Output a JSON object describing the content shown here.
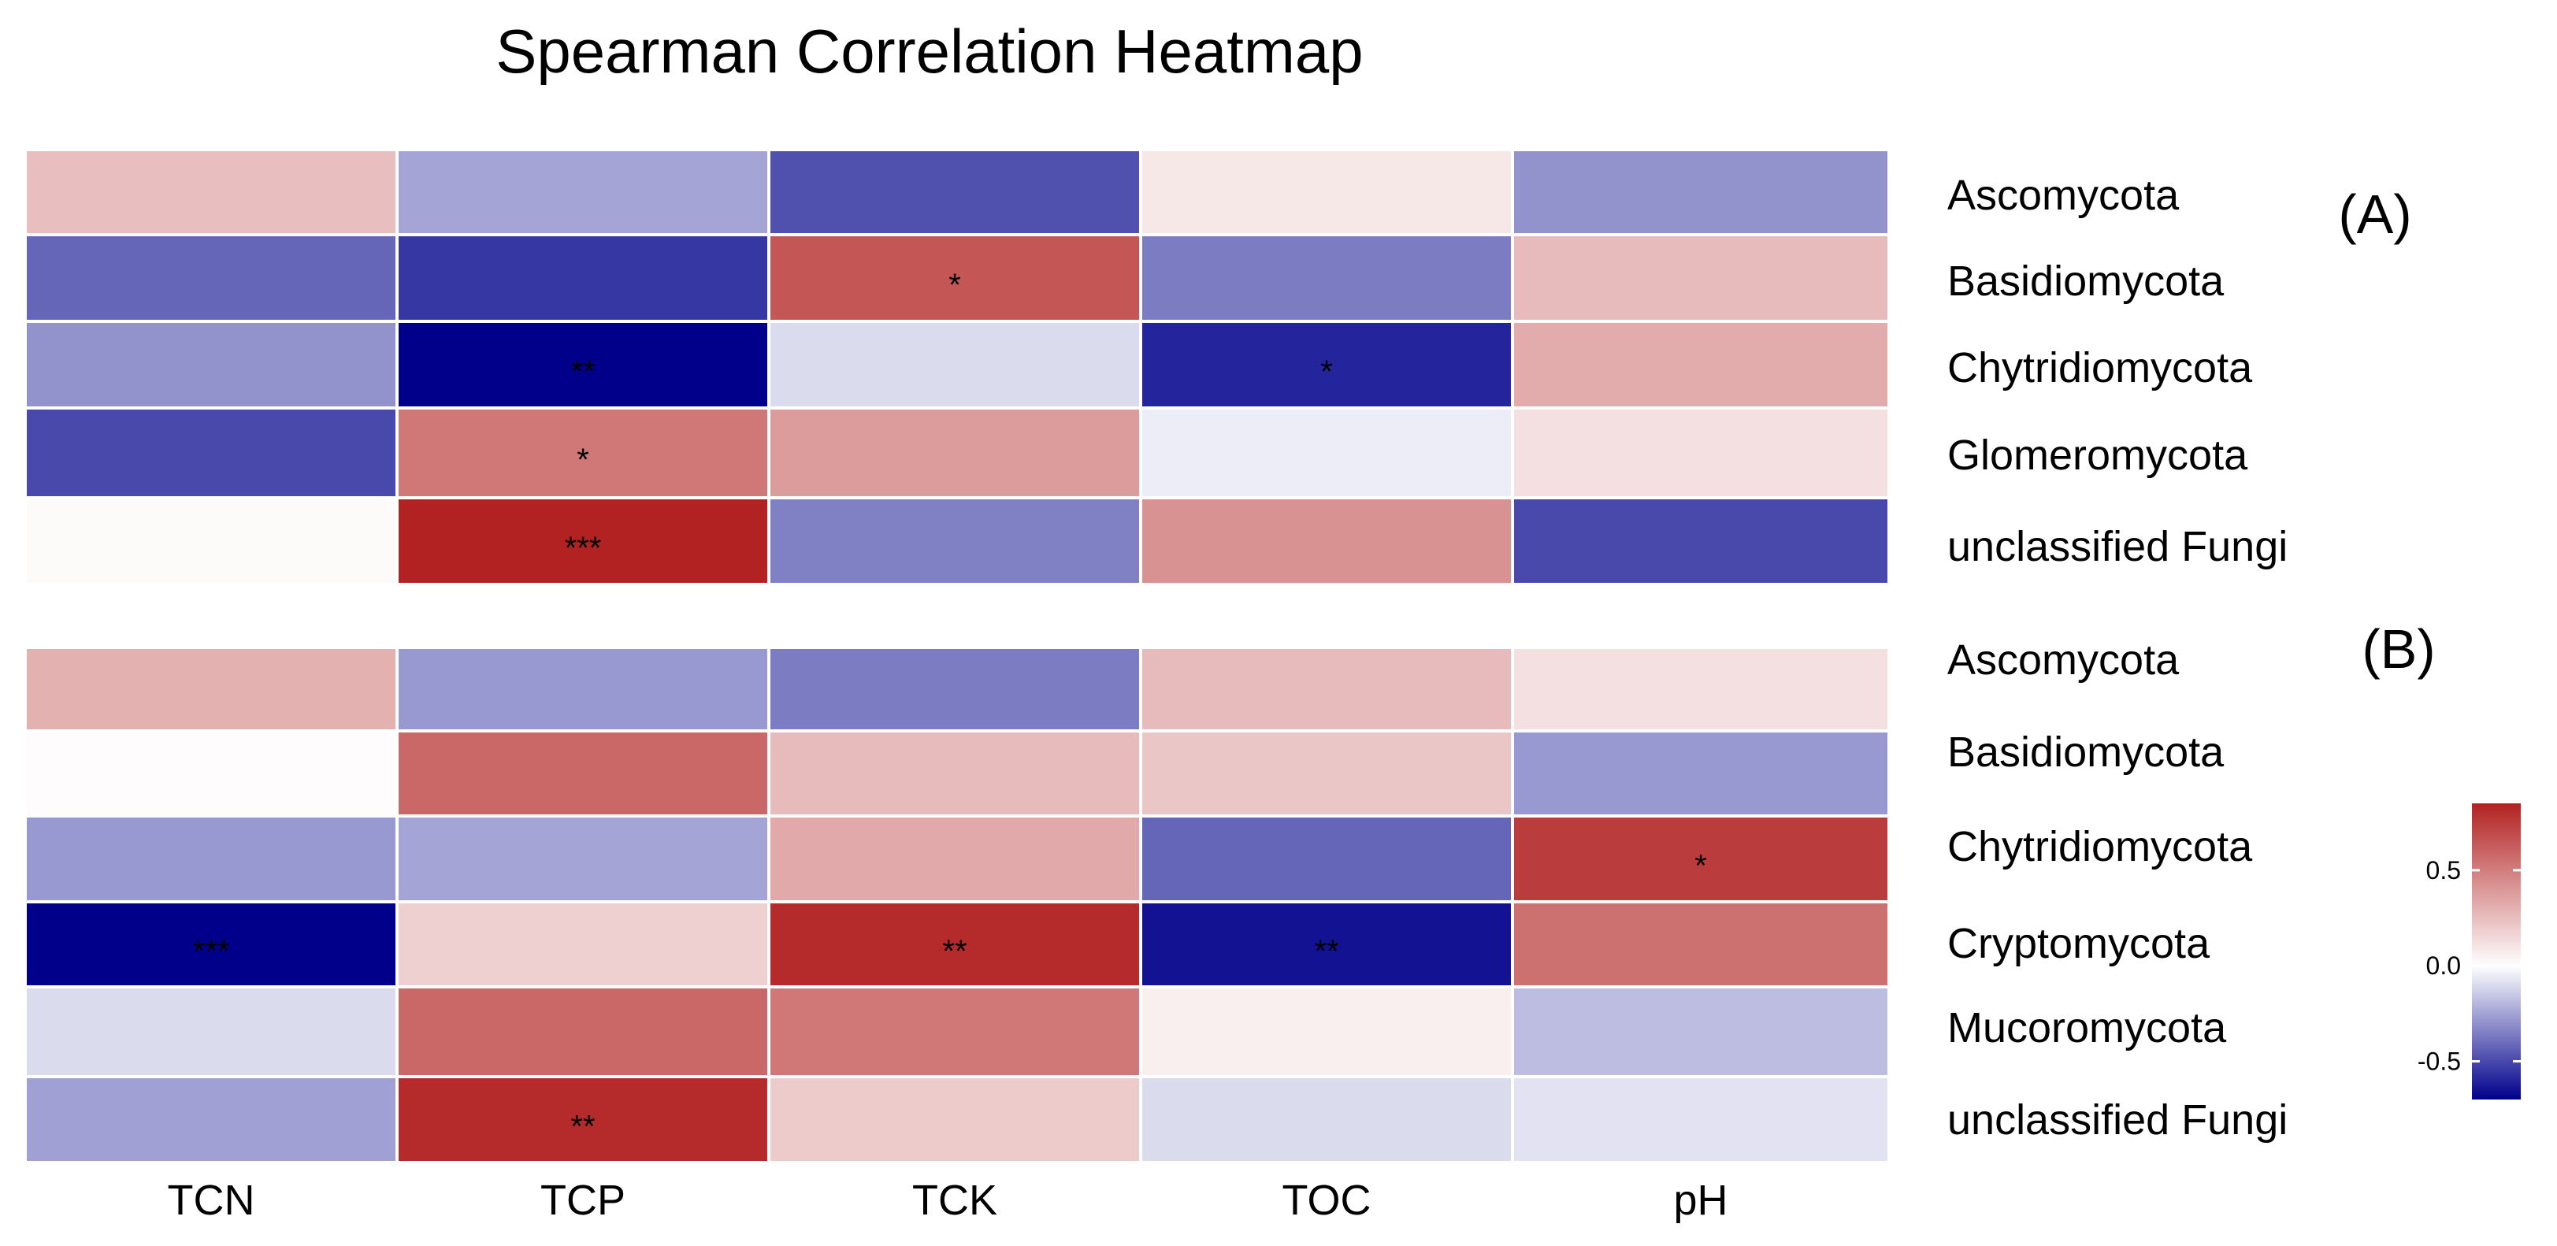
{
  "chart_data": {
    "type": "heatmap",
    "title": "Spearman Correlation Heatmap",
    "columns": [
      "TCN",
      "TCP",
      "TCK",
      "TOC",
      "pH"
    ],
    "color_scale": {
      "low": "#00008B",
      "mid": "#FFFFFF",
      "high": "#B22222",
      "limits": [
        -0.7,
        0.85
      ],
      "ticks": [
        0.5,
        0.0,
        -0.5
      ],
      "tick_labels": [
        "0.5",
        "0.0",
        "-0.5"
      ]
    },
    "panels": [
      {
        "label": "(A)",
        "rows": [
          "Ascomycota",
          "Basidiomycota",
          "Chytridiomycota",
          "Glomeromycota",
          "unclassified Fungi"
        ],
        "values": [
          [
            0.25,
            -0.25,
            -0.48,
            0.09,
            -0.3
          ],
          [
            -0.42,
            -0.55,
            0.65,
            -0.36,
            0.26
          ],
          [
            -0.3,
            -0.7,
            -0.1,
            -0.6,
            0.32
          ],
          [
            -0.5,
            0.52,
            0.38,
            -0.05,
            0.12
          ],
          [
            0.02,
            0.85,
            -0.35,
            0.42,
            -0.5
          ]
        ],
        "significance": [
          [
            "",
            "",
            "",
            "",
            ""
          ],
          [
            "",
            "",
            "*",
            "",
            ""
          ],
          [
            "",
            "**",
            "",
            "*",
            ""
          ],
          [
            "",
            "*",
            "",
            "",
            ""
          ],
          [
            "",
            "***",
            "",
            "",
            ""
          ]
        ]
      },
      {
        "label": "(B)",
        "rows": [
          "Ascomycota",
          "Basidiomycota",
          "Chytridiomycota",
          "Cryptomycota",
          "Mucoromycota",
          "unclassified Fungi"
        ],
        "values": [
          [
            0.3,
            -0.28,
            -0.36,
            0.26,
            0.12
          ],
          [
            0.01,
            0.58,
            0.26,
            0.22,
            -0.28
          ],
          [
            -0.28,
            -0.25,
            0.33,
            -0.42,
            0.75
          ],
          [
            -0.7,
            0.18,
            0.82,
            -0.65,
            0.55
          ],
          [
            -0.1,
            0.58,
            0.52,
            0.06,
            -0.18
          ],
          [
            -0.26,
            0.82,
            0.2,
            -0.1,
            -0.08
          ]
        ],
        "significance": [
          [
            "",
            "",
            "",
            "",
            ""
          ],
          [
            "",
            "",
            "",
            "",
            ""
          ],
          [
            "",
            "",
            "",
            "",
            "*"
          ],
          [
            "***",
            "",
            "**",
            "**",
            ""
          ],
          [
            "",
            "",
            "",
            "",
            ""
          ],
          [
            "",
            "**",
            "",
            "",
            ""
          ]
        ]
      }
    ]
  }
}
